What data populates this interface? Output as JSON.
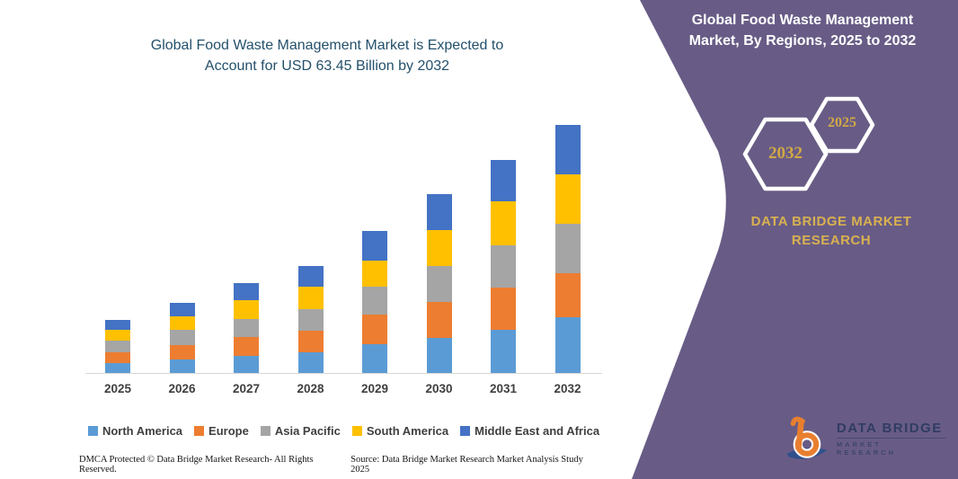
{
  "left": {
    "title": "Global Food Waste Management Market is Expected to Account for USD 63.45 Billion by 2032",
    "footer_left": "DMCA Protected © Data Bridge Market Research- All Rights Reserved.",
    "footer_right": "Source: Data Bridge Market Research Market Analysis Study 2025"
  },
  "chart_data": {
    "type": "bar",
    "stacked": true,
    "title": "Global Food Waste Management Market is Expected to Account for USD 63.45 Billion by 2032",
    "unit": "USD Billion",
    "categories": [
      "2025",
      "2026",
      "2027",
      "2028",
      "2029",
      "2030",
      "2031",
      "2032"
    ],
    "series": [
      {
        "name": "North America",
        "color": "#5B9BD5",
        "values": [
          2.6,
          3.5,
          4.4,
          5.3,
          7.3,
          8.9,
          11.0,
          14.2
        ]
      },
      {
        "name": "Europe",
        "color": "#ED7D31",
        "values": [
          2.7,
          3.7,
          4.8,
          5.5,
          7.6,
          9.2,
          10.8,
          11.2
        ]
      },
      {
        "name": "Asia Pacific",
        "color": "#A5A5A5",
        "values": [
          2.9,
          4.0,
          4.6,
          5.5,
          7.1,
          9.2,
          10.8,
          12.7
        ]
      },
      {
        "name": "South America",
        "color": "#FFC000",
        "values": [
          2.7,
          3.5,
          4.8,
          5.7,
          6.6,
          9.2,
          11.2,
          12.7
        ]
      },
      {
        "name": "Middle East and Africa",
        "color": "#4472C4",
        "values": [
          2.6,
          3.4,
          4.3,
          5.3,
          7.6,
          9.1,
          10.5,
          12.65
        ]
      }
    ],
    "totals": [
      13.5,
      18.1,
      22.9,
      27.3,
      36.2,
      45.6,
      54.3,
      63.45
    ],
    "xlabel": "",
    "ylabel": "",
    "ylim": [
      0,
      65
    ],
    "grid": false,
    "legend_position": "bottom"
  },
  "right_panel": {
    "title": "Global Food Waste Management Market, By Regions, 2025 to 2032",
    "hexagons": {
      "large_year": "2032",
      "small_year": "2025"
    },
    "brand_text": "DATA BRIDGE MARKET RESEARCH",
    "logo": {
      "title": "DATA BRIDGE",
      "subtitle": "MARKET RESEARCH"
    },
    "colors": {
      "panel_purple": "#685C86",
      "gold": "#D9B150",
      "hex_year_gold": "#D2A845"
    }
  }
}
